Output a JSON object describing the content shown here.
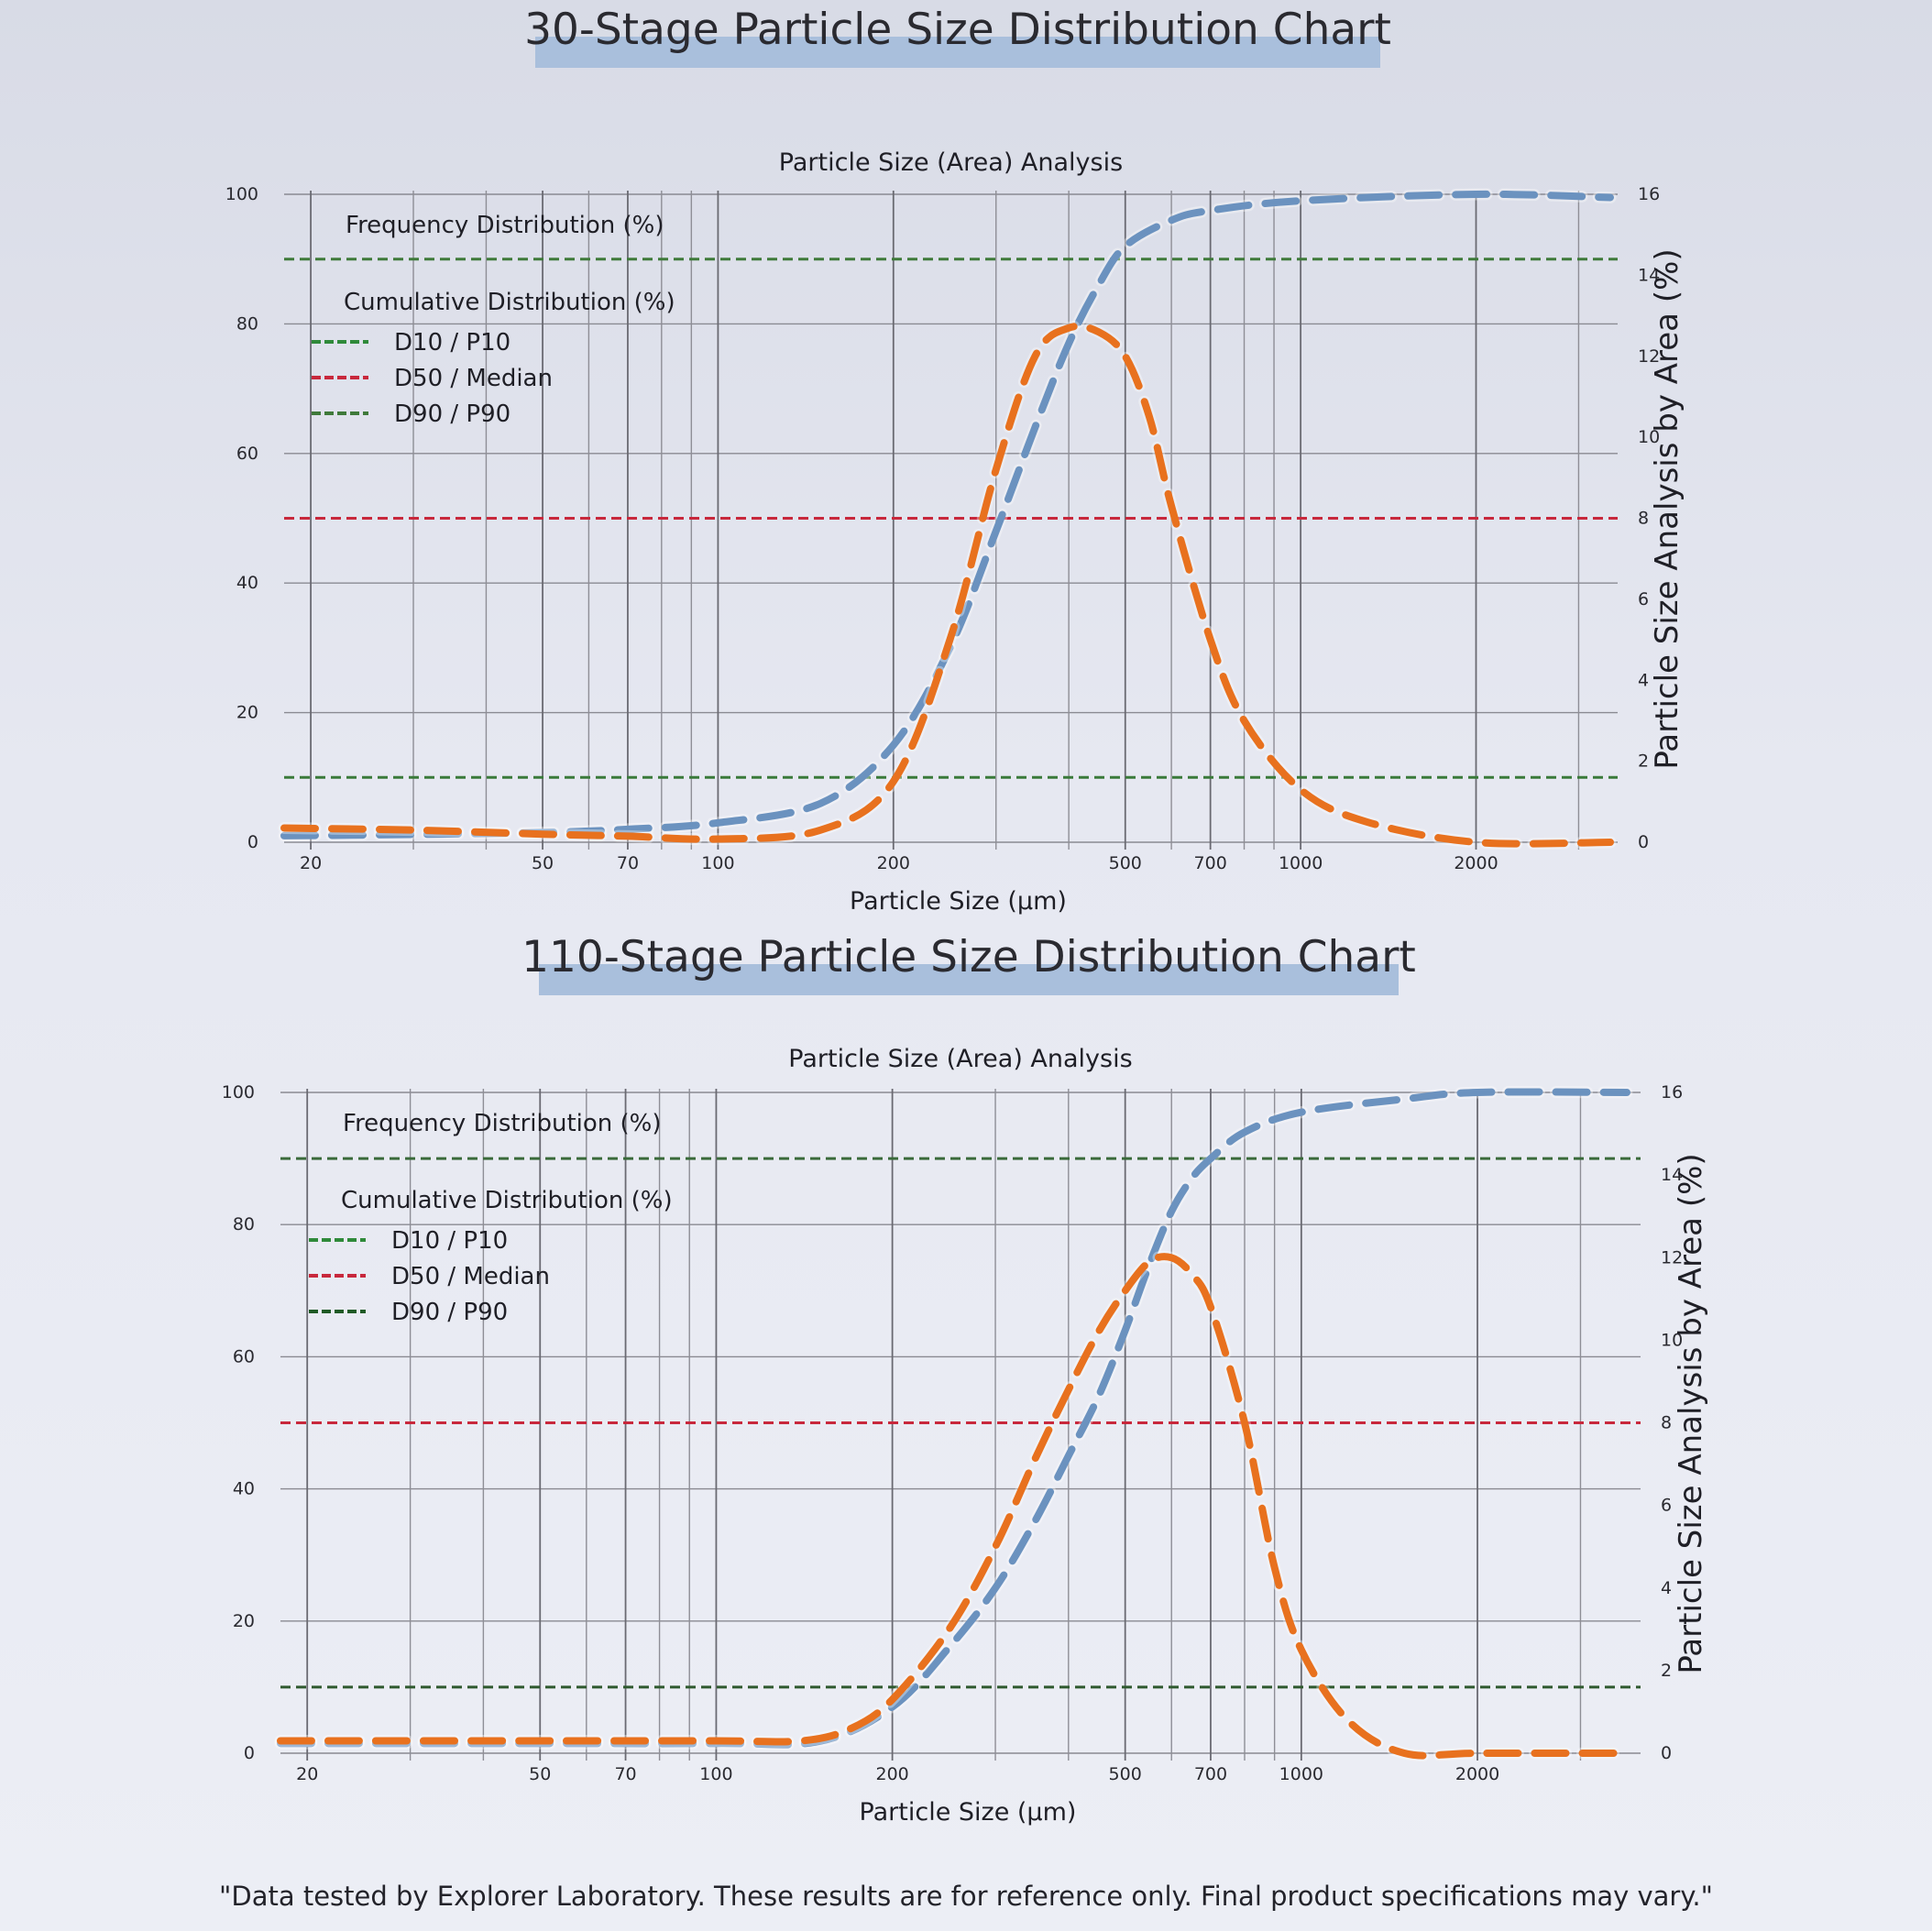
{
  "chart_data": [
    {
      "type": "line",
      "title": "30-Stage Particle Size Distribution Chart",
      "subtitle": "Particle Size (Area) Analysis",
      "xlabel": "Particle Size (μm)",
      "ylabel_right": "Particle Size Analysis by Area (%)",
      "x_scale": "log",
      "xlim": [
        18,
        3500
      ],
      "ylim_left": [
        0,
        100
      ],
      "ylim_right": [
        0,
        16
      ],
      "x_ticks": [
        20,
        50,
        70,
        100,
        200,
        500,
        700,
        1000,
        2000
      ],
      "x_tick_labels": [
        "20",
        "50",
        "70",
        "100",
        "200",
        "500",
        "700",
        "1000",
        "2000"
      ],
      "x_gridlines": [
        20,
        30,
        40,
        50,
        60,
        70,
        80,
        90,
        100,
        200,
        300,
        400,
        500,
        600,
        700,
        800,
        900,
        1000,
        2000,
        3000
      ],
      "y_ticks_left": [
        0,
        20,
        40,
        60,
        80,
        100
      ],
      "y_ticks_left_labels": [
        "0",
        "20",
        "40",
        "60",
        "80",
        "100"
      ],
      "y_ticks_right": [
        0,
        2,
        4,
        6,
        8,
        10,
        12,
        14,
        16
      ],
      "y_ticks_right_labels": [
        "0",
        "2",
        "4",
        "6",
        "8",
        "10",
        "12",
        "14",
        "16"
      ],
      "legend": {
        "position": "top-left",
        "headers": [
          "Frequency Distribution (%)",
          "Cumulative Distribution (%)"
        ],
        "entries": [
          {
            "label": "D10 / P10",
            "color": "#2f8a3a"
          },
          {
            "label": "D50 / Median",
            "color": "#c8283c"
          },
          {
            "label": "D90 / P90",
            "color": "#3f7a3a"
          }
        ]
      },
      "reference_lines": [
        {
          "name": "D10 / P10",
          "y": 10,
          "color": "#3a7a3a"
        },
        {
          "name": "D50 / Median",
          "y": 50,
          "color": "#c8283c"
        },
        {
          "name": "D90 / P90",
          "y": 90,
          "color": "#3f7a3a"
        }
      ],
      "series": [
        {
          "axis": "left",
          "color": "#6b92bf",
          "x": [
            18,
            30,
            50,
            70,
            100,
            150,
            200,
            250,
            300,
            350,
            400,
            450,
            500,
            600,
            700,
            1000,
            2000,
            3400
          ],
          "y": [
            1,
            1.2,
            1.5,
            2,
            3,
            6,
            15,
            30,
            48,
            64,
            77,
            86,
            92,
            96,
            97.5,
            99,
            100,
            99.5
          ]
        },
        {
          "axis": "right",
          "color": "#e8711e",
          "x": [
            18,
            30,
            50,
            70,
            100,
            150,
            200,
            250,
            300,
            350,
            400,
            450,
            500,
            550,
            600,
            700,
            800,
            1000,
            1300,
            2000,
            3400
          ],
          "y": [
            0.35,
            0.3,
            0.2,
            0.15,
            0.08,
            0.3,
            1.5,
            5.0,
            9.2,
            12.0,
            12.7,
            12.6,
            12.0,
            10.5,
            8.3,
            5.0,
            3.0,
            1.3,
            0.5,
            0.0,
            0.0
          ]
        }
      ]
    },
    {
      "type": "line",
      "title": "110-Stage Particle Size Distribution Chart",
      "subtitle": "Particle Size (Area) Analysis",
      "xlabel": "Particle Size (μm)",
      "ylabel_right": "Particle Size Analysis by Area (%)",
      "x_scale": "log",
      "xlim": [
        18,
        3800
      ],
      "ylim_left": [
        0,
        100
      ],
      "ylim_right": [
        0,
        16
      ],
      "x_ticks": [
        20,
        50,
        70,
        100,
        200,
        500,
        700,
        1000,
        2000
      ],
      "x_tick_labels": [
        "20",
        "50",
        "70",
        "100",
        "200",
        "500",
        "700",
        "1000",
        "2000"
      ],
      "x_gridlines": [
        20,
        30,
        40,
        50,
        60,
        70,
        80,
        90,
        100,
        200,
        300,
        400,
        500,
        600,
        700,
        800,
        900,
        1000,
        2000,
        3000
      ],
      "y_ticks_left": [
        0,
        20,
        40,
        60,
        80,
        100
      ],
      "y_ticks_left_labels": [
        "0",
        "20",
        "40",
        "60",
        "80",
        "100"
      ],
      "y_ticks_right": [
        0,
        2,
        4,
        6,
        8,
        10,
        12,
        14,
        16
      ],
      "y_ticks_right_labels": [
        "0",
        "2",
        "4",
        "6",
        "8",
        "10",
        "12",
        "14",
        "16"
      ],
      "legend": {
        "position": "top-left",
        "headers": [
          "Frequency Distribution (%)",
          "Cumulative Distribution (%)"
        ],
        "entries": [
          {
            "label": "D10 / P10",
            "color": "#2f8a3a"
          },
          {
            "label": "D50 / Median",
            "color": "#c8283c"
          },
          {
            "label": "D90 / P90",
            "color": "#1f5a25"
          }
        ]
      },
      "reference_lines": [
        {
          "name": "D10 / P10",
          "y": 10,
          "color": "#2f5a2f"
        },
        {
          "name": "D50 / Median",
          "y": 50,
          "color": "#c8283c"
        },
        {
          "name": "D90 / P90",
          "y": 90,
          "color": "#3a6a3a"
        }
      ],
      "series": [
        {
          "axis": "left",
          "color": "#6b92bf",
          "x": [
            18,
            50,
            100,
            150,
            200,
            250,
            300,
            350,
            400,
            450,
            500,
            550,
            600,
            650,
            700,
            800,
            1000,
            1500,
            2000,
            3600
          ],
          "y": [
            1.5,
            1.5,
            1.5,
            1.8,
            7,
            16,
            25,
            35,
            45,
            54,
            64,
            74,
            82,
            87,
            90,
            94,
            97,
            99,
            100,
            100
          ]
        },
        {
          "axis": "right",
          "color": "#e8711e",
          "x": [
            18,
            50,
            100,
            140,
            170,
            200,
            250,
            300,
            350,
            400,
            450,
            500,
            550,
            600,
            650,
            700,
            800,
            900,
            1000,
            1200,
            1500,
            2000,
            3600
          ],
          "y": [
            0.3,
            0.3,
            0.3,
            0.3,
            0.6,
            1.3,
            3.0,
            5.0,
            7.1,
            8.8,
            10.2,
            11.2,
            11.9,
            12.0,
            11.6,
            10.8,
            8.0,
            4.5,
            2.5,
            0.8,
            0.0,
            0.0,
            0.0
          ]
        }
      ]
    }
  ],
  "footnote": "\"Data tested by Explorer Laboratory. These results are for reference only. Final product specifications may vary.\""
}
